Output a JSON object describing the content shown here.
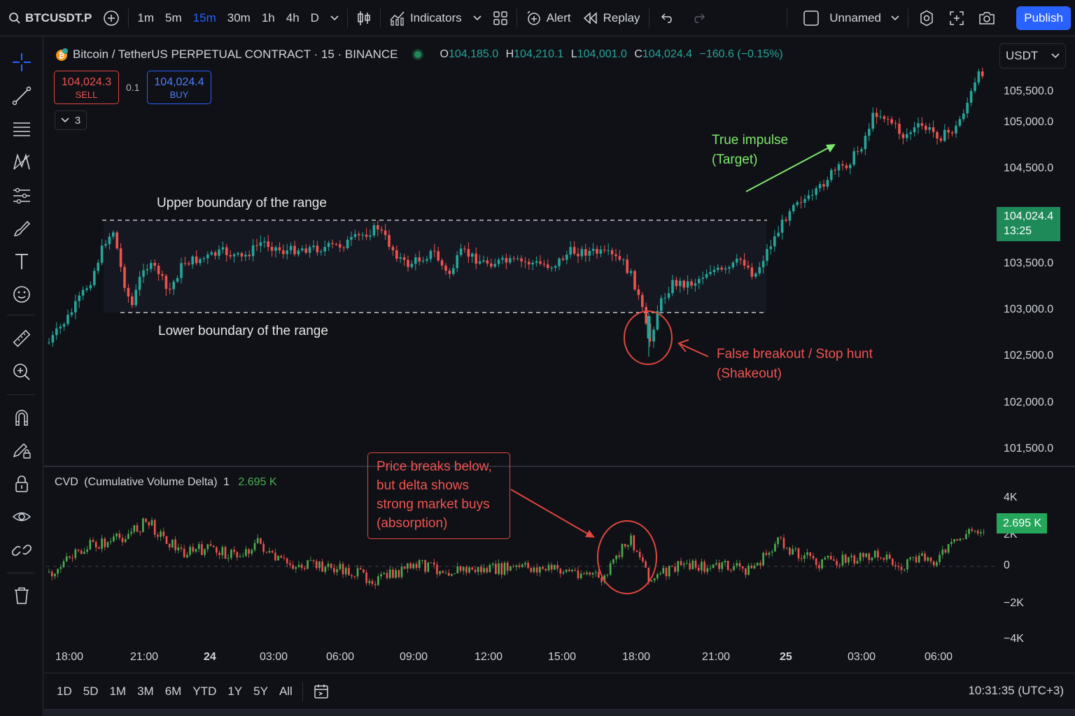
{
  "toolbar": {
    "symbol": "BTCUSDT.P",
    "intervals": [
      "1m",
      "5m",
      "15m",
      "30m",
      "1h",
      "4h",
      "D"
    ],
    "active_interval": "15m",
    "indicators_label": "Indicators",
    "alert_label": "Alert",
    "replay_label": "Replay",
    "layout_name": "Unnamed",
    "publish_label": "Publish"
  },
  "legend": {
    "title": "Bitcoin / TetherUS PERPETUAL CONTRACT · 15 · BINANCE",
    "open_key": "O",
    "open": "104,185.0",
    "high_key": "H",
    "high": "104,210.1",
    "low_key": "L",
    "low": "104,001.0",
    "close_key": "C",
    "close": "104,024.4",
    "change": "−160.6 (−0.15%)"
  },
  "trade": {
    "sell_price": "104,024.3",
    "sell_label": "SELL",
    "spread": "0.1",
    "buy_price": "104,024.4",
    "buy_label": "BUY",
    "collapsed_count": "3"
  },
  "price_axis": {
    "currency": "USDT",
    "labels": [
      "105,500.0",
      "105,000.0",
      "104,500.0",
      "103,500.0",
      "103,000.0",
      "102,500.0",
      "102,000.0",
      "101,500.0"
    ],
    "current_price": "104,024.4",
    "countdown": "13:25"
  },
  "annotations": {
    "upper": "Upper boundary of the range",
    "lower": "Lower boundary of the range",
    "impulse_line1": "True impulse",
    "impulse_line2": "(Target)",
    "breakout_line1": "False breakout / Stop hunt",
    "breakout_line2": "(Shakeout)",
    "cvd_note_lines": [
      "Price breaks below,",
      "but delta shows",
      "strong market buys",
      "(absorption)"
    ]
  },
  "cvd": {
    "name": "CVD",
    "full_name": "(Cumulative Volume Delta)",
    "param": "1",
    "value": "2.695 K",
    "axis_labels": [
      "4K",
      "2K",
      "0",
      "−2K",
      "−4K"
    ],
    "current_box": "2.695 K"
  },
  "time_axis": {
    "labels": [
      {
        "text": "18:00",
        "bold": false
      },
      {
        "text": "21:00",
        "bold": false
      },
      {
        "text": "24",
        "bold": true
      },
      {
        "text": "03:00",
        "bold": false
      },
      {
        "text": "06:00",
        "bold": false
      },
      {
        "text": "09:00",
        "bold": false
      },
      {
        "text": "12:00",
        "bold": false
      },
      {
        "text": "15:00",
        "bold": false
      },
      {
        "text": "18:00",
        "bold": false
      },
      {
        "text": "21:00",
        "bold": false
      },
      {
        "text": "25",
        "bold": true
      },
      {
        "text": "03:00",
        "bold": false
      },
      {
        "text": "06:00",
        "bold": false
      }
    ]
  },
  "bottom": {
    "ranges": [
      "1D",
      "5D",
      "1M",
      "3M",
      "6M",
      "YTD",
      "1Y",
      "5Y",
      "All"
    ],
    "clock": "10:31:35 (UTC+3)"
  },
  "colors": {
    "up": "#26a69a",
    "down": "#ef5350",
    "accent": "#2962ff",
    "background": "#0f1116",
    "impulse_arrow": "#7ee86c",
    "breakout_annotation": "#ef5350"
  }
}
